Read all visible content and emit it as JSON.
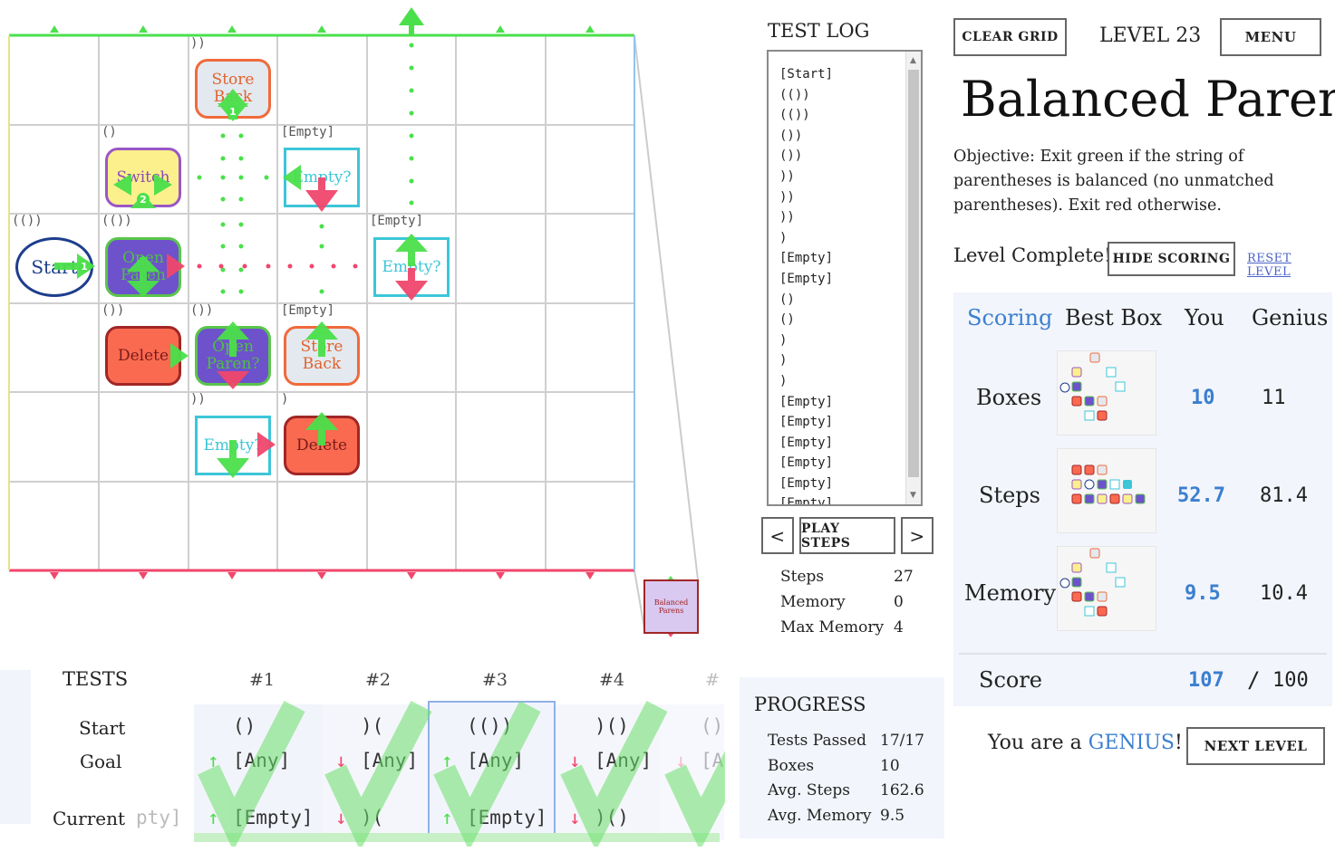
{
  "grid": {
    "cell_labels": [
      "))",
      "()",
      "[Empty]",
      "(())",
      "(())",
      "[Empty]",
      "())",
      "())",
      "[Empty]",
      "))",
      ")"
    ],
    "boxes": {
      "store_back_1": "Store Back",
      "switch": "Switch",
      "empty_1": "Empty?",
      "start": "Start",
      "open_paren_1": "Open Paren",
      "empty_2": "Empty?",
      "delete_1": "Delete",
      "open_paren_2": "Open Paren?",
      "store_back_2": "Store Back",
      "empty_3": "Empty?",
      "delete_2": "Delete"
    },
    "arrow_numbers": [
      "1",
      "2",
      "1"
    ],
    "mini_label": "Balanced Parens"
  },
  "test_log": {
    "title": "TEST LOG",
    "entries": [
      "[Start]",
      "(())",
      "(())",
      "())",
      "())",
      "))",
      "))",
      "))",
      ")",
      "[Empty]",
      "[Empty]",
      "()",
      "()",
      ")",
      ")",
      ")",
      "[Empty]",
      "[Empty]",
      "[Empty]",
      "[Empty]",
      "[Empty]",
      "[Empty]"
    ]
  },
  "controls": {
    "prev_label": "<",
    "play_label": "PLAY STEPS",
    "next_label": ">"
  },
  "stats": {
    "steps_label": "Steps",
    "steps_value": "27",
    "memory_label": "Memory",
    "memory_value": "0",
    "max_memory_label": "Max Memory",
    "max_memory_value": "4"
  },
  "header": {
    "clear_grid_label": "CLEAR GRID",
    "level_label": "LEVEL 23",
    "menu_label": "MENU"
  },
  "level": {
    "title": "Balanced Parens",
    "objective": "Objective: Exit green if the string of parentheses is balanced (no unmatched parentheses). Exit red otherwise.",
    "complete_text": "Level Complete!",
    "hide_scoring_label": "HIDE SCORING",
    "reset_level_label": "RESET LEVEL"
  },
  "scoring": {
    "headers": {
      "scoring": "Scoring",
      "best_box": "Best Box",
      "you": "You",
      "genius": "Genius"
    },
    "rows": [
      {
        "label": "Boxes",
        "you": "10",
        "genius": "11"
      },
      {
        "label": "Steps",
        "you": "52.7",
        "genius": "81.4"
      },
      {
        "label": "Memory",
        "you": "9.5",
        "genius": "10.4"
      }
    ],
    "score_label": "Score",
    "score_you": "107",
    "score_sep": "/",
    "score_total": "100"
  },
  "result": {
    "prefix": "You are a ",
    "rank": "GENIUS",
    "suffix": "!",
    "next_level_label": "NEXT LEVEL"
  },
  "tests": {
    "title": "TESTS",
    "row_labels": {
      "start": "Start",
      "goal": "Goal",
      "current": "Current"
    },
    "prev_current_fragment": "pty]",
    "columns": [
      {
        "num": "#1",
        "start": "()",
        "goal": "[Any]",
        "current": "[Empty]",
        "goal_color": "green",
        "current_color": "green"
      },
      {
        "num": "#2",
        "start": ")(",
        "goal": "[Any]",
        "current": ")(",
        "goal_color": "red",
        "current_color": "red"
      },
      {
        "num": "#3",
        "start": "(())",
        "goal": "[Any]",
        "current": "[Empty]",
        "goal_color": "green",
        "current_color": "green"
      },
      {
        "num": "#4",
        "start": ")()",
        "goal": "[Any]",
        "current": ")()",
        "goal_color": "red",
        "current_color": "red"
      },
      {
        "num": "#",
        "start": "()",
        "goal": "[A",
        "current": "",
        "goal_color": "red",
        "current_color": "red"
      }
    ]
  },
  "progress": {
    "title": "PROGRESS",
    "items": [
      {
        "label": "Tests Passed",
        "value": "17/17"
      },
      {
        "label": "Boxes",
        "value": "10"
      },
      {
        "label": "Avg. Steps",
        "value": "162.6"
      },
      {
        "label": "Avg. Memory",
        "value": "9.5"
      }
    ]
  },
  "colors": {
    "green": "#4be04b",
    "red": "#f0476c",
    "blue": "#3b7fd0",
    "cyan": "#3cc6d8"
  }
}
